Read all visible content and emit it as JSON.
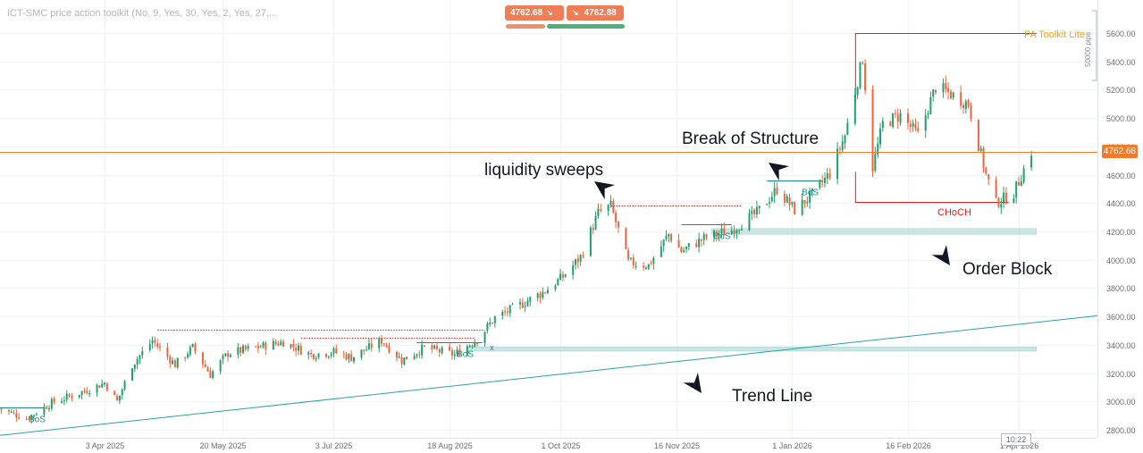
{
  "indicator": {
    "title": "ICT-SMC price action toolkit (No, 9, Yes, 30, Yes, 2, Yes, 27,..."
  },
  "quote": {
    "sell": "4762.68",
    "buy": "4762.88",
    "sell_arrow": "↘",
    "buy_arrow": "↘"
  },
  "annotations": {
    "liquidity": "liquidity sweeps",
    "bos": "Break of Structure",
    "order_block": "Order Block",
    "trend_line": "Trend Line",
    "choch": "CHoCH",
    "toolkit": "PA Toolkit Lite",
    "bos_tag": "BoS",
    "x_mark": "x"
  },
  "measure": {
    "pips": "50000 pips"
  },
  "current": {
    "price_label": "4762.68",
    "time": "10:22"
  },
  "colors": {
    "up": "#22a06b",
    "down": "#f0643c",
    "last_price": "#f07b2c",
    "structure": "#e5201e",
    "bos_line": "#1d8a8a",
    "order_block": "#b9ddd8",
    "trend": "#2ba1a1",
    "toolkit": "#f4a11c"
  },
  "chart_data": {
    "type": "candlestick",
    "symbol_last_price": 4762.68,
    "ylim": [
      2750,
      5850
    ],
    "y_ticks": [
      2800,
      3000,
      3200,
      3400,
      3600,
      3800,
      4000,
      4200,
      4400,
      4600,
      4800,
      5000,
      5200,
      5400,
      5600
    ],
    "y_tick_labels": [
      "2800.00",
      "3000.00",
      "3200.00",
      "3400.00",
      "3600.00",
      "3800.00",
      "4000.00",
      "4200.00",
      "4400.00",
      "4600.00",
      "4800.00",
      "5000.00",
      "5200.00",
      "5400.00",
      "5600.00"
    ],
    "x_ticks": [
      "3 Apr 2025",
      "20 May 2025",
      "3 Jul 2025",
      "18 Aug 2025",
      "1 Oct 2025",
      "16 Nov 2025",
      "1 Jan 2026",
      "16 Feb 2026",
      "1 Apr 2026"
    ],
    "close_path": [
      [
        "2025-02-20",
        2950
      ],
      [
        "2025-03-03",
        2880
      ],
      [
        "2025-03-13",
        2990
      ],
      [
        "2025-03-27",
        3080
      ],
      [
        "2025-04-03",
        3130
      ],
      [
        "2025-04-08",
        3000
      ],
      [
        "2025-04-14",
        3260
      ],
      [
        "2025-04-22",
        3430
      ],
      [
        "2025-05-01",
        3260
      ],
      [
        "2025-05-08",
        3380
      ],
      [
        "2025-05-15",
        3190
      ],
      [
        "2025-05-22",
        3340
      ],
      [
        "2025-06-02",
        3380
      ],
      [
        "2025-06-13",
        3420
      ],
      [
        "2025-06-24",
        3330
      ],
      [
        "2025-07-03",
        3350
      ],
      [
        "2025-07-10",
        3310
      ],
      [
        "2025-07-22",
        3430
      ],
      [
        "2025-07-30",
        3290
      ],
      [
        "2025-08-08",
        3380
      ],
      [
        "2025-08-20",
        3330
      ],
      [
        "2025-08-29",
        3440
      ],
      [
        "2025-09-05",
        3590
      ],
      [
        "2025-09-15",
        3680
      ],
      [
        "2025-09-25",
        3780
      ],
      [
        "2025-10-02",
        3880
      ],
      [
        "2025-10-09",
        4020
      ],
      [
        "2025-10-16",
        4330
      ],
      [
        "2025-10-21",
        4380
      ],
      [
        "2025-10-28",
        3980
      ],
      [
        "2025-11-05",
        3960
      ],
      [
        "2025-11-13",
        4180
      ],
      [
        "2025-11-18",
        4060
      ],
      [
        "2025-11-28",
        4160
      ],
      [
        "2025-12-08",
        4210
      ],
      [
        "2025-12-18",
        4330
      ],
      [
        "2025-12-26",
        4500
      ],
      [
        "2026-01-02",
        4350
      ],
      [
        "2026-01-09",
        4460
      ],
      [
        "2026-01-16",
        4610
      ],
      [
        "2026-01-22",
        4880
      ],
      [
        "2026-01-29",
        5420
      ],
      [
        "2026-02-02",
        4650
      ],
      [
        "2026-02-06",
        4960
      ],
      [
        "2026-02-13",
        5020
      ],
      [
        "2026-02-20",
        4880
      ],
      [
        "2026-02-27",
        5220
      ],
      [
        "2026-03-04",
        5180
      ],
      [
        "2026-03-12",
        5100
      ],
      [
        "2026-03-19",
        4600
      ],
      [
        "2026-03-23",
        4400
      ],
      [
        "2026-03-30",
        4470
      ],
      [
        "2026-04-06",
        4762.68
      ]
    ],
    "levels": [
      {
        "label": "BoS",
        "price": 2955,
        "from": "2025-02-20",
        "to": "2025-03-10"
      },
      {
        "label": "BoS",
        "price": 3420,
        "from": "2025-08-05",
        "to": "2025-08-31"
      },
      {
        "label": "BoS",
        "price": 4250,
        "from": "2025-11-18",
        "to": "2025-12-08"
      },
      {
        "label": "BoS",
        "price": 4560,
        "from": "2025-12-22",
        "to": "2026-01-13"
      },
      {
        "label": "CHoCH",
        "price": 4410,
        "from": "2026-01-26",
        "to": "2026-03-28"
      },
      {
        "label": "PA Toolkit Lite",
        "price": 5600,
        "from": "2026-01-26",
        "to": "2026-04-08"
      }
    ],
    "order_blocks": [
      {
        "from": "2025-08-25",
        "to": "2026-04-08",
        "low": 3355,
        "high": 3385
      },
      {
        "from": "2025-11-30",
        "to": "2026-04-08",
        "low": 4180,
        "high": 4220
      }
    ],
    "trend_line": {
      "from": [
        "2025-02-20",
        2760
      ],
      "to": [
        "2026-05-10",
        3620
      ]
    }
  }
}
